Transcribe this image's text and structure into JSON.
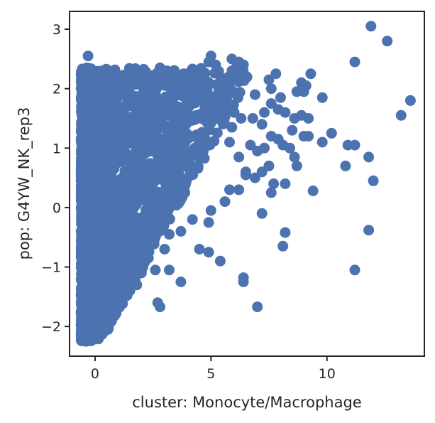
{
  "chart_data": {
    "type": "scatter",
    "title": "",
    "xlabel": "cluster: Monocyte/Macrophage",
    "ylabel": "pop: G4YW_NK_rep3",
    "xlim": [
      -1.1,
      14.2
    ],
    "ylim": [
      -2.5,
      3.3
    ],
    "x_ticks": [
      0,
      5,
      10
    ],
    "x_tick_labels": [
      "0",
      "5",
      "10"
    ],
    "y_ticks": [
      -2,
      -1,
      0,
      1,
      2,
      3
    ],
    "y_tick_labels": [
      "−2",
      "−1",
      "0",
      "1",
      "2",
      "3"
    ],
    "grid": false,
    "legend": "none",
    "marker_color": "#4c72b0",
    "series": [
      {
        "points": [
          [
            -0.3,
            2.55
          ],
          [
            -0.4,
            2.2
          ],
          [
            0.3,
            2.3
          ],
          [
            0.6,
            2.15
          ],
          [
            1.0,
            2.1
          ],
          [
            1.5,
            2.15
          ],
          [
            2.3,
            2.15
          ],
          [
            2.8,
            2.35
          ],
          [
            3.1,
            2.3
          ],
          [
            3.8,
            2.2
          ],
          [
            5.0,
            2.55
          ],
          [
            4.9,
            2.45
          ],
          [
            5.2,
            2.4
          ],
          [
            5.9,
            2.5
          ],
          [
            6.2,
            2.45
          ],
          [
            5.9,
            2.3
          ],
          [
            6.1,
            2.25
          ],
          [
            6.4,
            2.4
          ],
          [
            5.5,
            2.05
          ],
          [
            6.9,
            1.9
          ],
          [
            7.5,
            2.15
          ],
          [
            7.6,
            2.0
          ],
          [
            7.8,
            2.25
          ],
          [
            8.0,
            1.85
          ],
          [
            8.7,
            1.95
          ],
          [
            8.9,
            2.1
          ],
          [
            9.1,
            2.05
          ],
          [
            9.3,
            2.25
          ],
          [
            9.0,
            1.95
          ],
          [
            9.8,
            1.85
          ],
          [
            11.2,
            2.45
          ],
          [
            11.9,
            3.05
          ],
          [
            12.6,
            2.8
          ],
          [
            13.2,
            1.55
          ],
          [
            13.6,
            1.8
          ],
          [
            6.8,
            1.5
          ],
          [
            7.2,
            1.4
          ],
          [
            7.3,
            1.6
          ],
          [
            7.6,
            1.75
          ],
          [
            7.9,
            1.65
          ],
          [
            8.2,
            1.6
          ],
          [
            8.6,
            1.5
          ],
          [
            8.9,
            1.55
          ],
          [
            9.2,
            1.5
          ],
          [
            8.5,
            1.3
          ],
          [
            9.0,
            1.2
          ],
          [
            9.2,
            1.2
          ],
          [
            9.8,
            1.1
          ],
          [
            10.2,
            1.25
          ],
          [
            10.9,
            1.05
          ],
          [
            11.2,
            1.05
          ],
          [
            11.8,
            0.85
          ],
          [
            12.0,
            0.45
          ],
          [
            10.8,
            0.7
          ],
          [
            9.4,
            0.28
          ],
          [
            8.4,
            1.0
          ],
          [
            8.6,
            0.85
          ],
          [
            8.7,
            0.7
          ],
          [
            8.1,
            1.05
          ],
          [
            7.9,
            1.15
          ],
          [
            7.6,
            1.2
          ],
          [
            7.3,
            1.0
          ],
          [
            7.0,
            0.95
          ],
          [
            6.7,
            1.05
          ],
          [
            6.5,
            0.55
          ],
          [
            6.9,
            0.5
          ],
          [
            7.2,
            0.6
          ],
          [
            7.5,
            0.7
          ],
          [
            7.7,
            0.4
          ],
          [
            7.6,
            0.25
          ],
          [
            8.2,
            0.4
          ],
          [
            7.2,
            -0.1
          ],
          [
            8.2,
            -0.42
          ],
          [
            8.1,
            -0.65
          ],
          [
            11.8,
            -0.38
          ],
          [
            11.2,
            -1.05
          ],
          [
            6.4,
            -1.18
          ],
          [
            6.4,
            -1.25
          ],
          [
            7.0,
            -1.67
          ],
          [
            5.4,
            -0.9
          ],
          [
            4.9,
            -0.75
          ],
          [
            4.5,
            -0.7
          ],
          [
            3.7,
            -1.25
          ],
          [
            3.2,
            -1.05
          ],
          [
            2.6,
            -1.05
          ],
          [
            2.7,
            -1.6
          ],
          [
            2.8,
            -1.67
          ],
          [
            1.5,
            -1.4
          ],
          [
            1.8,
            -1.3
          ],
          [
            0.3,
            -1.67
          ],
          [
            -0.1,
            -2.15
          ],
          [
            -0.4,
            -2.25
          ],
          [
            -0.3,
            -2.15
          ],
          [
            -0.4,
            -2.0
          ],
          [
            -0.2,
            -1.9
          ],
          [
            0.1,
            -1.8
          ],
          [
            -0.5,
            -1.9
          ],
          [
            0.0,
            -1.7
          ],
          [
            0.5,
            -1.45
          ],
          [
            1.0,
            -1.3
          ],
          [
            1.3,
            -1.15
          ],
          [
            2.0,
            -1.1
          ],
          [
            2.3,
            -0.85
          ],
          [
            3.0,
            -0.7
          ],
          [
            3.2,
            -0.45
          ],
          [
            3.7,
            -0.4
          ],
          [
            4.2,
            -0.2
          ],
          [
            4.9,
            -0.25
          ],
          [
            5.0,
            -0.05
          ],
          [
            5.6,
            0.1
          ],
          [
            5.8,
            0.3
          ],
          [
            6.2,
            0.3
          ],
          [
            6.5,
            0.6
          ],
          [
            6.2,
            0.85
          ],
          [
            5.8,
            1.1
          ],
          [
            5.9,
            1.35
          ],
          [
            6.3,
            1.5
          ],
          [
            6.0,
            1.6
          ],
          [
            5.6,
            1.9
          ],
          [
            5.2,
            1.7
          ],
          [
            4.8,
            1.45
          ],
          [
            4.6,
            1.2
          ],
          [
            4.3,
            1.0
          ],
          [
            4.0,
            0.7
          ],
          [
            3.7,
            0.5
          ],
          [
            3.5,
            0.2
          ],
          [
            3.1,
            0.0
          ],
          [
            2.8,
            -0.15
          ],
          [
            2.5,
            -0.4
          ],
          [
            2.2,
            -0.6
          ],
          [
            1.8,
            -0.8
          ],
          [
            1.5,
            -0.95
          ],
          [
            1.2,
            -1.05
          ],
          [
            0.9,
            -1.1
          ],
          [
            0.6,
            -1.2
          ],
          [
            0.4,
            -1.35
          ],
          [
            0.2,
            -1.5
          ],
          [
            -0.1,
            -1.55
          ],
          [
            -0.3,
            -1.6
          ],
          [
            -0.5,
            -1.7
          ]
        ]
      }
    ]
  }
}
